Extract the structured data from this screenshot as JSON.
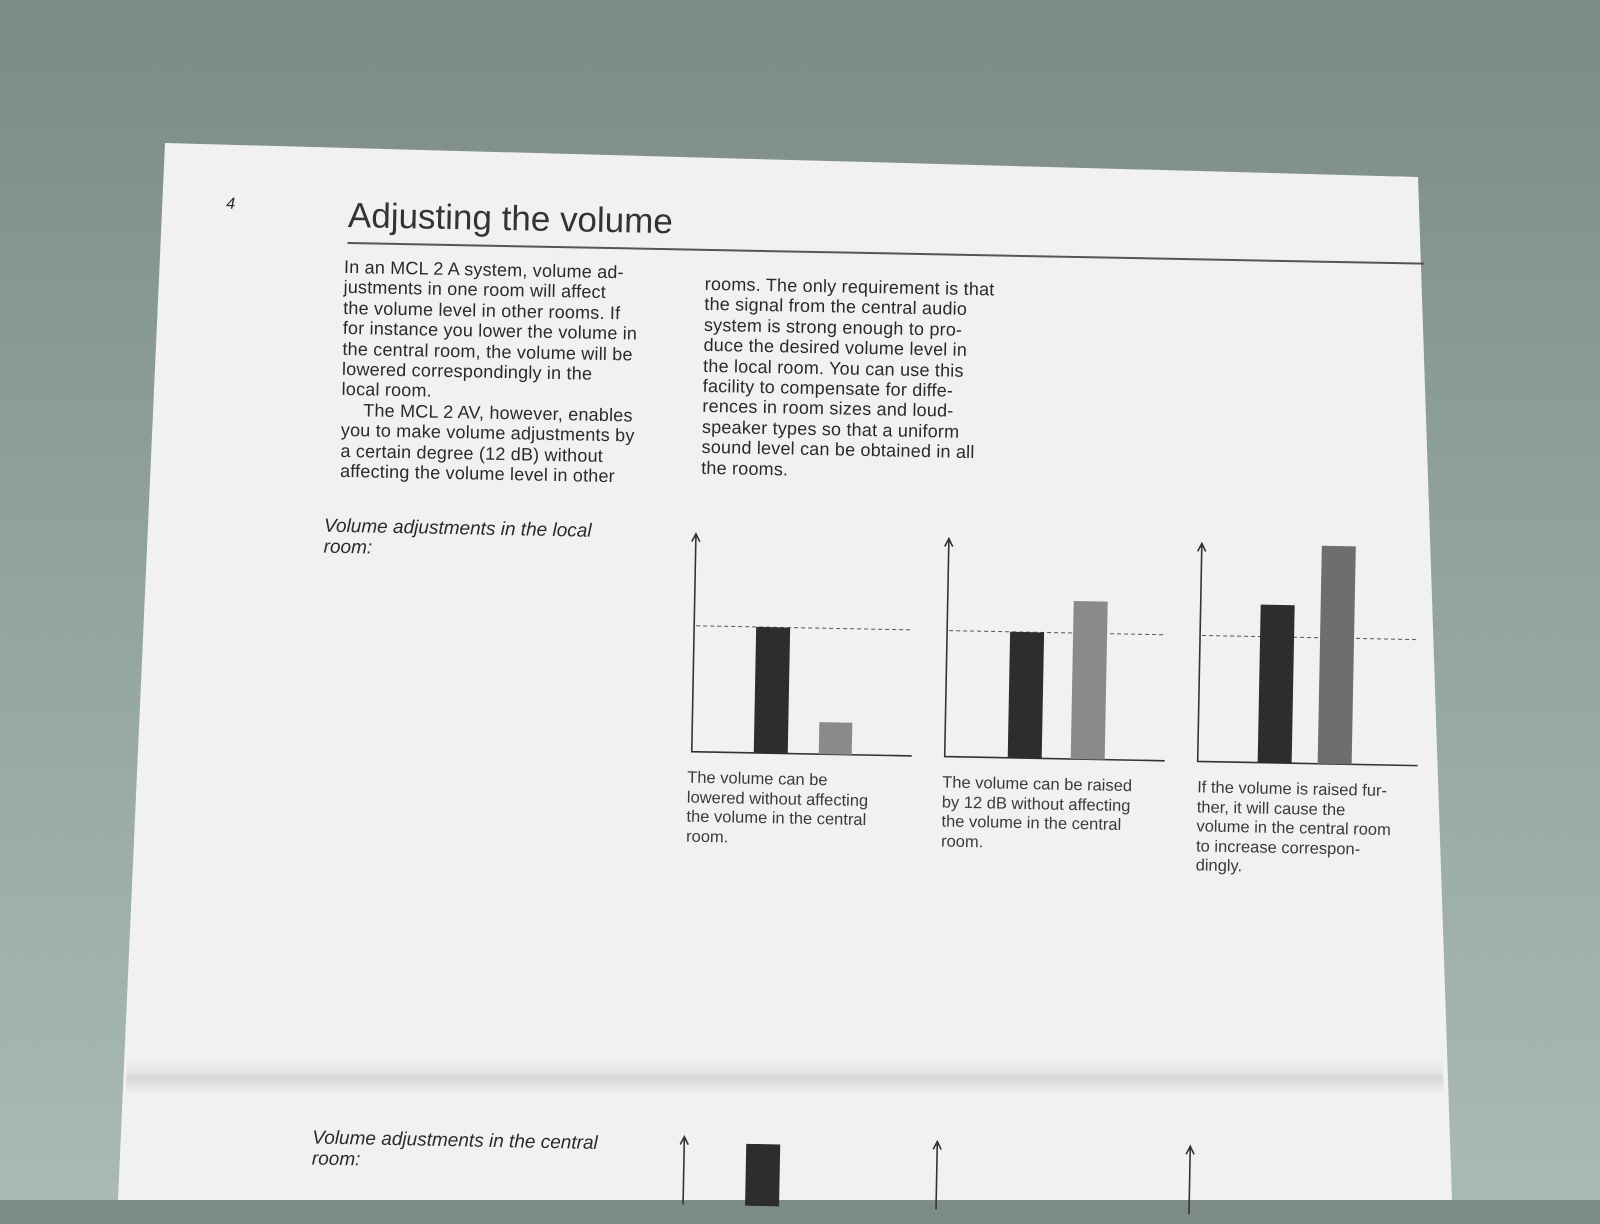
{
  "page_number": "4",
  "title": "Adjusting the volume",
  "body": {
    "column_1": [
      "In an MCL 2 A system, volume ad-",
      "justments in one room will affect",
      "the volume level in other rooms. If",
      "for instance you lower the volume in",
      "the central room, the volume will be",
      "lowered correspondingly in the",
      "local room.",
      "The MCL 2 AV, however, enables",
      "you to make volume adjustments by",
      "a certain degree (12 dB) without",
      "affecting the volume level in other"
    ],
    "column_2": [
      "rooms. The only requirement is that",
      "the signal from the central audio",
      "system is strong enough to pro-",
      "duce the desired volume level in",
      "the local room. You can use this",
      "facility to compensate for diffe-",
      "rences in room sizes and loud-",
      "speaker types so that a uniform",
      "sound level can be obtained in all",
      "the rooms."
    ]
  },
  "section_local": {
    "label": [
      "Volume adjustments in the local",
      "room:"
    ],
    "captions": [
      [
        "The volume can be",
        "lowered without affecting",
        "the volume in the central",
        "room."
      ],
      [
        "The volume can be raised",
        "by 12 dB without affecting",
        "the volume in the central",
        "room."
      ],
      [
        "If the volume is raised fur-",
        "ther, it will cause the",
        "volume in the central room",
        "to increase correspon-",
        "dingly."
      ]
    ]
  },
  "section_central": {
    "label": [
      "Volume adjustments in the central",
      "room:"
    ]
  }
}
